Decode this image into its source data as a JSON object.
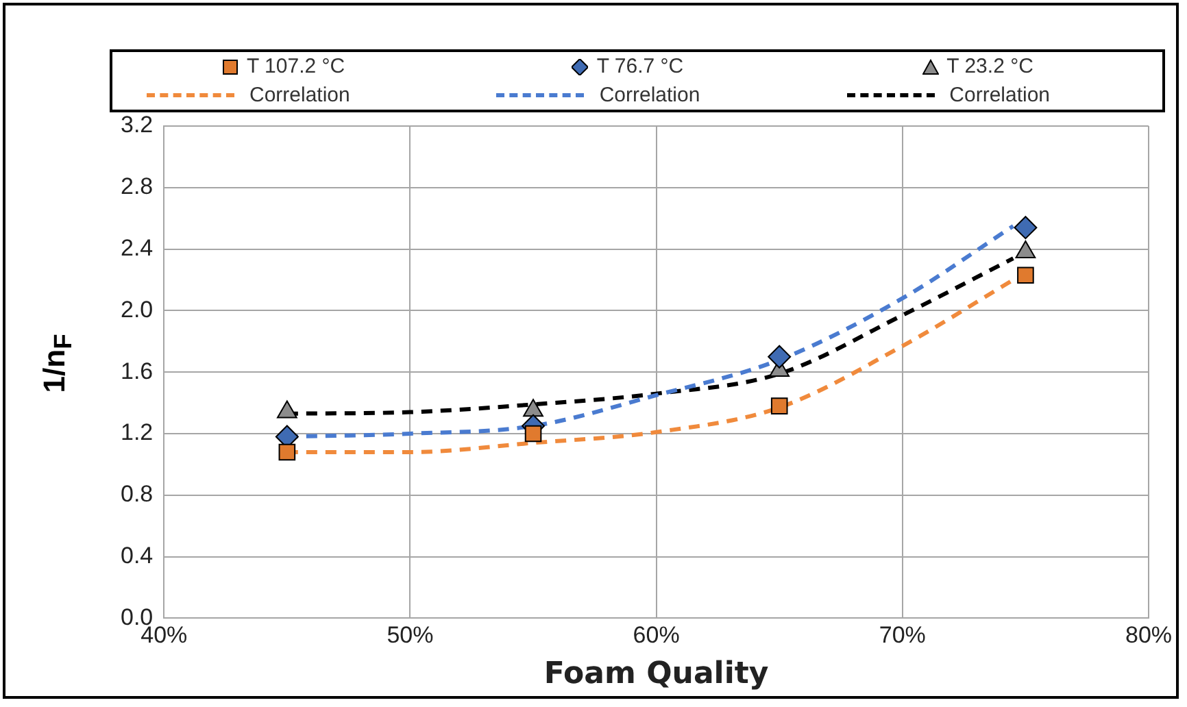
{
  "chart_data": {
    "type": "scatter",
    "xlabel": "Foam Quality",
    "ylabel": "1/n$_{F}$",
    "xlim": [
      40,
      80
    ],
    "xticks": [
      {
        "value": 40,
        "label": "40%"
      },
      {
        "value": 50,
        "label": "50%"
      },
      {
        "value": 60,
        "label": "60%"
      },
      {
        "value": 70,
        "label": "70%"
      },
      {
        "value": 80,
        "label": "80%"
      }
    ],
    "ylim": [
      0,
      3.2
    ],
    "yticks": [
      {
        "value": 0,
        "label": "0.0"
      },
      {
        "value": 0.4,
        "label": "0.4"
      },
      {
        "value": 0.8,
        "label": "0.8"
      },
      {
        "value": 1.2,
        "label": "1.2"
      },
      {
        "value": 1.6,
        "label": "1.6"
      },
      {
        "value": 2.0,
        "label": "2.0"
      },
      {
        "value": 2.4,
        "label": "2.4"
      },
      {
        "value": 2.8,
        "label": "2.8"
      },
      {
        "value": 3.2,
        "label": "3.2"
      }
    ],
    "grid": true,
    "legend": "top",
    "series": [
      {
        "name": "T  107.2  °C",
        "marker": "square",
        "color": "#e07a2e",
        "x": [
          45,
          55,
          65,
          75
        ],
        "values": [
          1.08,
          1.2,
          1.38,
          2.23
        ]
      },
      {
        "name": "T  76.7  °C",
        "marker": "diamond",
        "color": "#3f6bb3",
        "x": [
          45,
          55,
          65,
          75
        ],
        "values": [
          1.18,
          1.25,
          1.7,
          2.54
        ]
      },
      {
        "name": "T  23.2  °C",
        "marker": "triangle",
        "color": "#8c8c8c",
        "x": [
          45,
          55,
          65,
          75
        ],
        "values": [
          1.34,
          1.35,
          1.61,
          2.38
        ]
      },
      {
        "name": "Correlation",
        "type": "line",
        "marker": "none",
        "line_style": "dashed",
        "color": "#f08a3c",
        "x": [
          45,
          50,
          55,
          60,
          65,
          70,
          74.5
        ],
        "values": [
          1.08,
          1.08,
          1.14,
          1.21,
          1.37,
          1.77,
          2.2
        ]
      },
      {
        "name": "Correlation",
        "type": "line",
        "marker": "none",
        "line_style": "dashed",
        "color": "#4a7bd0",
        "x": [
          45,
          50,
          55,
          60,
          65,
          70,
          74.5
        ],
        "values": [
          1.18,
          1.2,
          1.25,
          1.45,
          1.68,
          2.08,
          2.55
        ]
      },
      {
        "name": "Correlation",
        "type": "line",
        "marker": "none",
        "line_style": "dashed",
        "color": "#000000",
        "x": [
          45,
          50,
          55,
          60,
          65,
          70,
          74.5
        ],
        "values": [
          1.33,
          1.34,
          1.39,
          1.46,
          1.59,
          1.97,
          2.34
        ]
      }
    ]
  }
}
